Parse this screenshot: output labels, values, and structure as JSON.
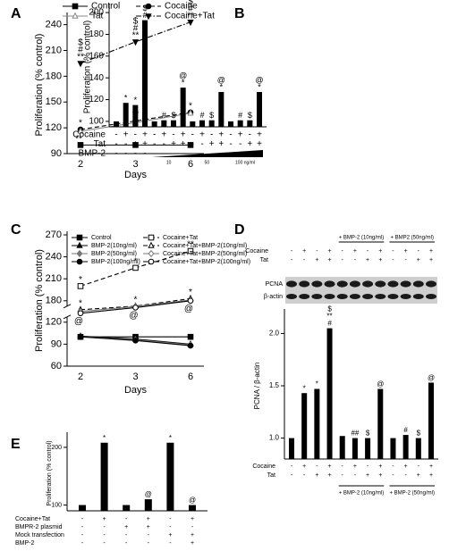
{
  "chart_data": [
    {
      "panel": "A",
      "type": "line",
      "y_label": "Proliferation (% control)",
      "x_label": "Days",
      "categories": [
        "2",
        "3",
        "6"
      ],
      "ylim": [
        90,
        250
      ],
      "yticks": [
        90,
        120,
        150,
        180,
        210,
        240
      ],
      "series": [
        {
          "name": "Control",
          "color": "#000000",
          "marker": "square",
          "line_style": "solid",
          "values": [
            100,
            100,
            100
          ]
        },
        {
          "name": "Cocaine",
          "color": "#000000",
          "marker": "circle",
          "line_style": "dashed",
          "values": [
            118,
            128,
            138
          ],
          "annotations": [
            [
              "*"
            ],
            [
              "**"
            ],
            [
              "*"
            ]
          ]
        },
        {
          "name": "Tat",
          "color": "#888888",
          "marker": "triangle-open",
          "line_style": "solid",
          "values": [
            116,
            126,
            137
          ],
          "annotations": [
            [
              "**"
            ],
            null,
            null
          ]
        },
        {
          "name": "Cocaine+Tat",
          "color": "#000000",
          "marker": "triangle-down",
          "line_style": "dashdot",
          "values": [
            195,
            220,
            243
          ],
          "annotations": [
            [
              "$",
              "#",
              "**"
            ],
            [
              "$",
              "#",
              "**"
            ],
            [
              "$",
              "#",
              "**"
            ]
          ]
        }
      ]
    },
    {
      "panel": "B",
      "type": "bar",
      "y_label": "Proliferation (% control)",
      "color": "#000000",
      "values": [
        100,
        117,
        115,
        193,
        100,
        101,
        101,
        131,
        100,
        101,
        101,
        127,
        100,
        101,
        101,
        127
      ],
      "annotations": [
        null,
        [
          "*"
        ],
        [
          "*"
        ],
        [
          "$",
          "#"
        ],
        null,
        [
          "#"
        ],
        [
          "$"
        ],
        [
          "@",
          "*"
        ],
        null,
        [
          "#"
        ],
        [
          "$"
        ],
        [
          "@",
          "*"
        ],
        null,
        [
          "#"
        ],
        [
          "$"
        ],
        [
          "@",
          "*"
        ]
      ],
      "ylim": [
        95,
        205
      ],
      "yticks": [
        100,
        120,
        140,
        160,
        180,
        200
      ],
      "treatment_rows": [
        {
          "label": "Cocaine",
          "signs": [
            "-",
            "+",
            "-",
            "+",
            "-",
            "+",
            "-",
            "+",
            "-",
            "+",
            "-",
            "+",
            "-",
            "+",
            "-",
            "+"
          ]
        },
        {
          "label": "Tat",
          "signs": [
            "-",
            "-",
            "+",
            "+",
            "-",
            "-",
            "+",
            "+",
            "-",
            "-",
            "+",
            "+",
            "-",
            "-",
            "+",
            "+"
          ]
        },
        {
          "label": "BMP-2",
          "signs": [
            "-",
            "-",
            "-",
            "-"
          ]
        }
      ],
      "gradient_labels": [
        "10",
        "50",
        "100 ng/ml"
      ]
    },
    {
      "panel": "C",
      "type": "line",
      "y_label": "Proliferation (% control)",
      "x_label": "Days",
      "categories": [
        "2",
        "3",
        "6"
      ],
      "ylim": [
        60,
        270
      ],
      "y_break": [
        120,
        180
      ],
      "yticks": [
        60,
        90,
        120,
        180,
        210,
        240,
        270
      ],
      "series": [
        {
          "name": "Control",
          "color": "#000000",
          "marker": "square",
          "line_style": "solid",
          "values": [
            100,
            100,
            100
          ]
        },
        {
          "name": "BMP-2(10ng/ml)",
          "color": "#000000",
          "marker": "triangle",
          "line_style": "solid",
          "values": [
            101,
            97,
            90
          ]
        },
        {
          "name": "BMP-2(50ng/ml)",
          "color": "#777777",
          "marker": "diamond",
          "line_style": "solid",
          "values": [
            100,
            96,
            89
          ]
        },
        {
          "name": "BMP-2(100ng/ml)",
          "color": "#000000",
          "marker": "circle",
          "line_style": "solid",
          "values": [
            100,
            95,
            88
          ]
        },
        {
          "name": "Cocaine+Tat",
          "color": "#000000",
          "marker": "square-open",
          "line_style": "dashed",
          "values": [
            200,
            225,
            248
          ],
          "annotations": [
            [
              "*"
            ],
            [
              "*"
            ],
            [
              "**"
            ]
          ]
        },
        {
          "name": "Cocaine+Tat+BMP-2(10ng/ml)",
          "color": "#000000",
          "marker": "triangle-open",
          "line_style": "dashed",
          "values": [
            155,
            165,
            183
          ],
          "annotations": [
            [
              "*"
            ],
            [
              "*"
            ],
            [
              "*"
            ]
          ]
        },
        {
          "name": "Cocaine+Tat+BMP-2(50ng/ml)",
          "color": "#777777",
          "marker": "diamond-open",
          "line_style": "solid",
          "values": [
            150,
            164,
            181
          ]
        },
        {
          "name": "Cocaine+Tat+BMP-2(100ng/ml)",
          "color": "#000000",
          "marker": "circle-open",
          "line_style": "solid",
          "values": [
            145,
            161,
            180
          ],
          "annotations": [
            [
              "@"
            ],
            [
              "@"
            ],
            [
              "@"
            ]
          ]
        }
      ]
    },
    {
      "panel": "D",
      "type": "bar",
      "y_label": "PCNA / β-actin",
      "color": "#000000",
      "values": [
        1.0,
        1.43,
        1.47,
        2.05,
        1.02,
        1.0,
        1.0,
        1.47,
        1.0,
        1.03,
        1.0,
        1.53
      ],
      "annotations": [
        null,
        [
          "*"
        ],
        [
          "*"
        ],
        [
          "$",
          "**",
          "#"
        ],
        null,
        [
          "##"
        ],
        [
          "$"
        ],
        [
          "@"
        ],
        null,
        [
          "#"
        ],
        [
          "$"
        ],
        [
          "@"
        ]
      ],
      "ylim": [
        0.8,
        2.2
      ],
      "yticks": [
        {
          "value": 1,
          "label": "1.0"
        },
        {
          "value": 1.5,
          "label": "1.5"
        },
        {
          "value": 2,
          "label": "2.0"
        }
      ],
      "treatment_rows": [
        {
          "label": "Cocaine",
          "signs": [
            "-",
            "+",
            "-",
            "+",
            "-",
            "+",
            "-",
            "+",
            "-",
            "+",
            "-",
            "+"
          ]
        },
        {
          "label": "Tat",
          "signs": [
            "-",
            "-",
            "+",
            "+",
            "-",
            "-",
            "+",
            "+",
            "-",
            "-",
            "+",
            "+"
          ]
        }
      ],
      "groups": [
        "+ BMP-2 (10ng/ml)",
        "+ BMP-2 (50ng/ml)"
      ],
      "blot": {
        "groups": [
          "+ BMP-2 (10ng/ml)",
          "+ BMP2 (50ng/ml)"
        ],
        "treatment_rows": [
          {
            "label": "Cocaine",
            "signs": [
              "-",
              "+",
              "-",
              "+",
              "-",
              "+",
              "-",
              "+",
              "-",
              "+",
              "-",
              "+"
            ]
          },
          {
            "label": "Tat",
            "signs": [
              "-",
              "-",
              "+",
              "+",
              "-",
              "-",
              "+",
              "+",
              "-",
              "-",
              "+",
              "+"
            ]
          }
        ],
        "bands": [
          "PCNA",
          "β-actin"
        ]
      }
    },
    {
      "panel": "E",
      "type": "bar",
      "y_label": "Proliferation (% control)",
      "color": "#000000",
      "values": [
        100,
        208,
        100,
        110,
        208,
        100
      ],
      "annotations": [
        null,
        [
          "*"
        ],
        null,
        [
          "@"
        ],
        [
          "*"
        ],
        [
          "@"
        ]
      ],
      "ylim": [
        90,
        220
      ],
      "yticks": [
        100,
        200
      ],
      "treatment_rows": [
        {
          "label": "Cocaine+Tat",
          "signs": [
            "-",
            "+",
            "-",
            "+",
            "-",
            "+"
          ]
        },
        {
          "label": "BMPR-2 plasmid",
          "signs": [
            "-",
            "-",
            "+",
            "+",
            "-",
            "-"
          ]
        },
        {
          "label": "Mock transfection",
          "signs": [
            "-",
            "-",
            "-",
            "-",
            "+",
            "+"
          ]
        },
        {
          "label": "BMP-2",
          "signs": [
            "-",
            "-",
            "-",
            "-",
            "-",
            "+"
          ]
        }
      ]
    }
  ]
}
